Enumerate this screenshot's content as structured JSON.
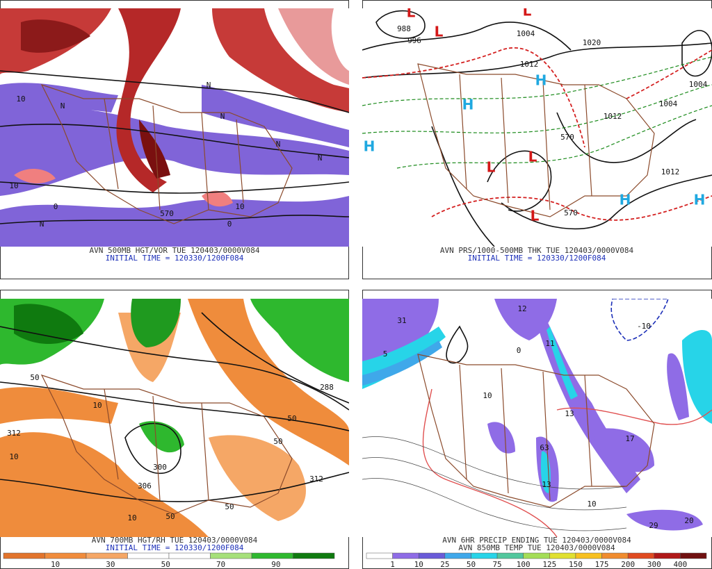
{
  "panels": [
    {
      "title": "AVN 500MB HGT/VOR TUE 120403/0000V084",
      "subtitle": "INITIAL TIME = 120330/1200F084",
      "labels": [
        "10",
        "N",
        "N",
        "0",
        "N",
        "10",
        "570",
        "N",
        "N",
        "N",
        "10",
        "0"
      ]
    },
    {
      "title": "AVN PRS/1000-500MB THK TUE 120403/0000V084",
      "subtitle": "INITIAL TIME = 120330/1200F084",
      "labels": [
        "L",
        "L",
        "L",
        "L",
        "L",
        "L",
        "H",
        "H",
        "H",
        "H",
        "H",
        "988",
        "996",
        "1004",
        "1012",
        "1020",
        "1004",
        "1012",
        "1012",
        "570",
        "570",
        "1004"
      ]
    },
    {
      "title": "AVN 700MB HGT/RH TUE 120403/0000V084",
      "subtitle": "INITIAL TIME = 120330/1200F084",
      "labels": [
        "312",
        "50",
        "10",
        "288",
        "300",
        "50",
        "50",
        "312",
        "10",
        "306",
        "50",
        "50",
        "10"
      ]
    },
    {
      "title": "AVN 6HR PRECIP ENDING TUE 120403/0000V084",
      "subtitle": "AVN 850MB TEMP TUE 120403/0000V084",
      "labels": [
        "31",
        "5",
        "12",
        "11",
        "13",
        "17",
        "63",
        "13",
        "10",
        "29",
        "20",
        "-10",
        "0",
        "10"
      ]
    }
  ],
  "colorbars": [
    {
      "colors": [
        "#e2742c",
        "#f08c3c",
        "#f5a766",
        "#ffffff",
        "#ffffff",
        "#a6e07a",
        "#2eb82e",
        "#0f7a0f"
      ],
      "labels": [
        "10",
        "30",
        "50",
        "70",
        "90"
      ]
    },
    {
      "colors": [
        "#ffffff",
        "#8f6ce6",
        "#6a5bd8",
        "#3fa8ea",
        "#27d4e8",
        "#52c79d",
        "#a4dd57",
        "#e0e030",
        "#f7c020",
        "#f08c2e",
        "#e04a20",
        "#b01818",
        "#701010"
      ],
      "labels": [
        "1",
        "10",
        "25",
        "50",
        "75",
        "100",
        "125",
        "150",
        "175",
        "200",
        "300",
        "400"
      ]
    }
  ]
}
